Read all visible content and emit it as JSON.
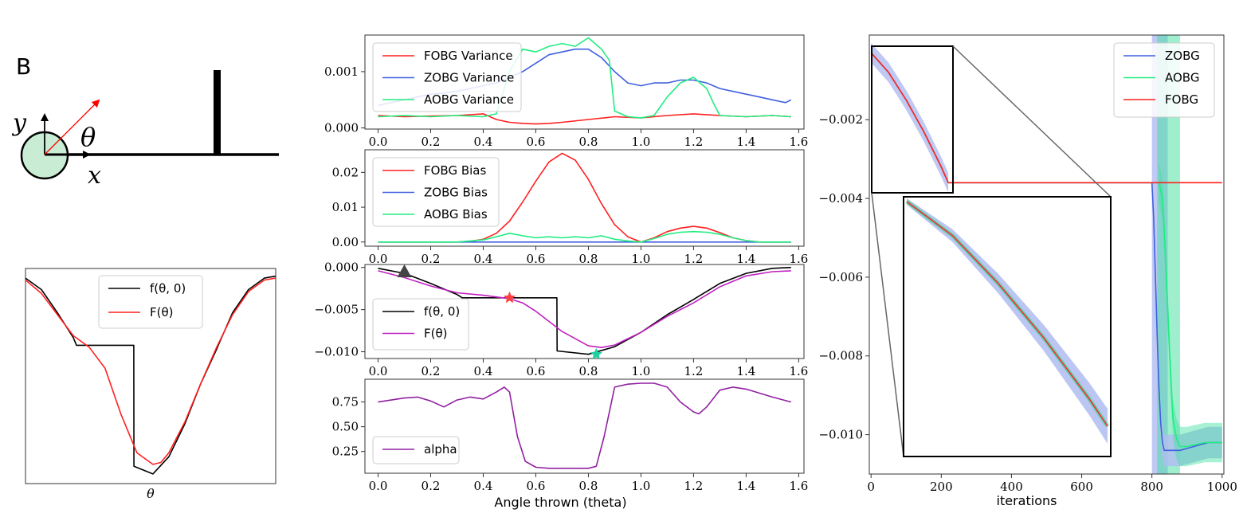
{
  "panel_label": "B",
  "schematic": {
    "axis_labels": {
      "y": "y",
      "x": "x",
      "theta": "θ"
    },
    "colors": {
      "ball_fill": "#c8ecd4",
      "throw_arrow": "#ff0000"
    }
  },
  "colors": {
    "fobg": "#ff2020",
    "zobg": "#4060e0",
    "aobg": "#20ee80",
    "f": "#000000",
    "F": "#c020c0",
    "alpha": "#9020a0",
    "marker_triangle": "#444444",
    "marker_star_red": "#ff4040",
    "marker_star_green": "#20d0a0"
  },
  "chart_data": [
    {
      "id": "landscape",
      "type": "line",
      "title": "",
      "xlabel": "θ",
      "ylabel": "",
      "xlim": [
        0.0,
        1.5708
      ],
      "ylim": [
        -0.0108,
        0.0004
      ],
      "series": [
        {
          "name": "f(θ, 0)",
          "color": "#000000",
          "x": [
            0.0,
            0.1,
            0.2,
            0.3,
            0.32,
            0.68,
            0.681,
            0.8,
            0.9,
            1.0,
            1.1,
            1.2,
            1.21,
            1.3,
            1.4,
            1.5,
            1.5708
          ],
          "y": [
            -0.0001,
            -0.0007,
            -0.0019,
            -0.0032,
            -0.0036,
            -0.0036,
            -0.0099,
            -0.0103,
            -0.0094,
            -0.0077,
            -0.0056,
            -0.0038,
            -0.0036,
            -0.0019,
            -0.0007,
            -0.0001,
            0.0
          ]
        },
        {
          "name": "F(θ)",
          "color": "#ff2020",
          "x": [
            0.0,
            0.1,
            0.2,
            0.3,
            0.4,
            0.5,
            0.6,
            0.7,
            0.8,
            0.85,
            0.9,
            1.0,
            1.1,
            1.2,
            1.3,
            1.4,
            1.5,
            1.5708
          ],
          "y": [
            -0.0002,
            -0.0009,
            -0.002,
            -0.0031,
            -0.0037,
            -0.0048,
            -0.0072,
            -0.0092,
            -0.0098,
            -0.0097,
            -0.0092,
            -0.0076,
            -0.0056,
            -0.0037,
            -0.002,
            -0.0008,
            -0.0002,
            -0.0001
          ]
        }
      ]
    },
    {
      "id": "variance",
      "type": "line",
      "title": "",
      "xlabel": "",
      "ylabel": "",
      "xlim": [
        -0.05,
        1.62
      ],
      "ylim": [
        -2e-05,
        0.00165
      ],
      "yticks": [
        0.0,
        0.001
      ],
      "ytick_labels": [
        "0.000",
        "0.001"
      ],
      "xticks": [
        0.0,
        0.2,
        0.4,
        0.6,
        0.8,
        1.0,
        1.2,
        1.4,
        1.6
      ],
      "xtick_labels": [
        "0.0",
        "0.2",
        "0.4",
        "0.6",
        "0.8",
        "1.0",
        "1.2",
        "1.4",
        "1.6"
      ],
      "legend": "upper-left",
      "series": [
        {
          "name": "FOBG Variance",
          "color": "#ff2020",
          "x": [
            0.0,
            0.1,
            0.2,
            0.3,
            0.4,
            0.45,
            0.5,
            0.55,
            0.6,
            0.65,
            0.7,
            0.8,
            0.9,
            1.0,
            1.1,
            1.2,
            1.3,
            1.4,
            1.5,
            1.5708
          ],
          "y": [
            0.00022,
            0.0002,
            0.00021,
            0.00022,
            0.00025,
            0.00015,
            0.0001,
            8e-05,
            7e-05,
            8e-05,
            0.0001,
            0.00015,
            0.0002,
            0.00018,
            0.00022,
            0.00025,
            0.00022,
            0.0002,
            0.00022,
            0.0002
          ]
        },
        {
          "name": "ZOBG Variance",
          "color": "#4060e0",
          "x": [
            0.0,
            0.05,
            0.1,
            0.15,
            0.2,
            0.25,
            0.3,
            0.35,
            0.4,
            0.45,
            0.5,
            0.55,
            0.6,
            0.65,
            0.7,
            0.75,
            0.8,
            0.85,
            0.9,
            0.95,
            1.0,
            1.05,
            1.1,
            1.15,
            1.2,
            1.25,
            1.3,
            1.35,
            1.4,
            1.45,
            1.5,
            1.55,
            1.5708
          ],
          "y": [
            0.0004,
            0.00045,
            0.0005,
            0.00055,
            0.0006,
            0.00062,
            0.00065,
            0.0007,
            0.00075,
            0.0008,
            0.0009,
            0.001,
            0.00115,
            0.0013,
            0.00135,
            0.0014,
            0.0014,
            0.00125,
            0.001,
            0.0008,
            0.00075,
            0.0008,
            0.0008,
            0.00085,
            0.00085,
            0.0008,
            0.0007,
            0.00065,
            0.0006,
            0.00055,
            0.0005,
            0.00045,
            0.0005
          ]
        },
        {
          "name": "AOBG Variance",
          "color": "#20ee80",
          "x": [
            0.0,
            0.1,
            0.2,
            0.3,
            0.4,
            0.45,
            0.5,
            0.55,
            0.6,
            0.65,
            0.7,
            0.75,
            0.8,
            0.85,
            0.88,
            0.9,
            0.95,
            1.0,
            1.05,
            1.1,
            1.15,
            1.2,
            1.25,
            1.28,
            1.3,
            1.4,
            1.5,
            1.5708
          ],
          "y": [
            0.0002,
            0.00022,
            0.0002,
            0.00022,
            0.0002,
            0.00025,
            0.001,
            0.0014,
            0.00135,
            0.00145,
            0.0015,
            0.00145,
            0.0016,
            0.0014,
            0.0012,
            0.0003,
            0.0002,
            0.00018,
            0.00022,
            0.00055,
            0.0008,
            0.0009,
            0.0007,
            0.0004,
            0.00022,
            0.0002,
            0.00022,
            0.0002
          ]
        }
      ]
    },
    {
      "id": "bias",
      "type": "line",
      "title": "",
      "xlabel": "",
      "ylabel": "",
      "xlim": [
        -0.05,
        1.62
      ],
      "ylim": [
        -0.0012,
        0.0265
      ],
      "yticks": [
        0.0,
        0.01,
        0.02
      ],
      "ytick_labels": [
        "0.00",
        "0.01",
        "0.02"
      ],
      "xticks": [
        0.0,
        0.2,
        0.4,
        0.6,
        0.8,
        1.0,
        1.2,
        1.4,
        1.6
      ],
      "xtick_labels": [
        "0.0",
        "0.2",
        "0.4",
        "0.6",
        "0.8",
        "1.0",
        "1.2",
        "1.4",
        "1.6"
      ],
      "legend": "upper-left",
      "series": [
        {
          "name": "FOBG Bias",
          "color": "#ff2020",
          "x": [
            0.0,
            0.3,
            0.35,
            0.4,
            0.45,
            0.5,
            0.55,
            0.6,
            0.65,
            0.7,
            0.75,
            0.8,
            0.85,
            0.9,
            0.95,
            1.0,
            1.05,
            1.1,
            1.15,
            1.2,
            1.25,
            1.3,
            1.35,
            1.4,
            1.45,
            1.5,
            1.5708
          ],
          "y": [
            0.0,
            0.0,
            0.0002,
            0.0008,
            0.0025,
            0.006,
            0.0115,
            0.0175,
            0.023,
            0.0255,
            0.0235,
            0.018,
            0.011,
            0.005,
            0.0015,
            0.0,
            0.0012,
            0.003,
            0.004,
            0.0045,
            0.004,
            0.0027,
            0.0012,
            0.0004,
            0.0,
            0.0,
            0.0
          ]
        },
        {
          "name": "ZOBG Bias",
          "color": "#4060e0",
          "x": [
            0.0,
            0.4,
            0.8,
            1.2,
            1.5708
          ],
          "y": [
            0.0,
            0.0,
            0.0,
            0.0,
            0.0
          ]
        },
        {
          "name": "AOBG Bias",
          "color": "#20ee80",
          "x": [
            0.0,
            0.3,
            0.4,
            0.45,
            0.5,
            0.55,
            0.6,
            0.65,
            0.7,
            0.75,
            0.8,
            0.85,
            0.9,
            0.95,
            1.0,
            1.05,
            1.1,
            1.15,
            1.2,
            1.25,
            1.3,
            1.35,
            1.4,
            1.45,
            1.5708
          ],
          "y": [
            0.0,
            0.0,
            0.0006,
            0.0015,
            0.0025,
            0.0018,
            0.0012,
            0.0015,
            0.0012,
            0.0015,
            0.0012,
            0.0018,
            0.0008,
            0.0003,
            0.0,
            0.001,
            0.0022,
            0.0028,
            0.003,
            0.0028,
            0.0022,
            0.0012,
            0.0004,
            0.0,
            0.0
          ]
        }
      ]
    },
    {
      "id": "objective",
      "type": "line",
      "title": "",
      "xlabel": "",
      "ylabel": "",
      "xlim": [
        -0.05,
        1.62
      ],
      "ylim": [
        -0.0108,
        0.00035
      ],
      "yticks": [
        0.0,
        -0.005,
        -0.01
      ],
      "ytick_labels": [
        "0.000",
        "−0.005",
        "−0.010"
      ],
      "xticks": [
        0.0,
        0.2,
        0.4,
        0.6,
        0.8,
        1.0,
        1.2,
        1.4,
        1.6
      ],
      "xtick_labels": [
        "0.0",
        "0.2",
        "0.4",
        "0.6",
        "0.8",
        "1.0",
        "1.2",
        "1.4",
        "1.6"
      ],
      "legend": "lower-left",
      "series": [
        {
          "name": "f(θ, 0)",
          "color": "#000000",
          "x": [
            0.0,
            0.1,
            0.2,
            0.3,
            0.32,
            0.68,
            0.681,
            0.8,
            0.9,
            1.0,
            1.1,
            1.2,
            1.21,
            1.3,
            1.4,
            1.5,
            1.5708
          ],
          "y": [
            -0.0001,
            -0.0007,
            -0.0019,
            -0.0032,
            -0.0036,
            -0.0036,
            -0.0099,
            -0.0103,
            -0.0094,
            -0.0077,
            -0.0056,
            -0.0038,
            -0.0036,
            -0.0019,
            -0.0007,
            -0.0001,
            0.0
          ]
        },
        {
          "name": "F(θ)",
          "color": "#c020c0",
          "x": [
            0.0,
            0.1,
            0.2,
            0.3,
            0.4,
            0.5,
            0.55,
            0.6,
            0.7,
            0.8,
            0.85,
            0.9,
            1.0,
            1.1,
            1.2,
            1.3,
            1.4,
            1.5,
            1.5708
          ],
          "y": [
            -0.0004,
            -0.0012,
            -0.0022,
            -0.003,
            -0.0033,
            -0.0037,
            -0.0042,
            -0.0052,
            -0.0076,
            -0.0093,
            -0.0095,
            -0.0092,
            -0.0077,
            -0.0058,
            -0.0042,
            -0.0023,
            -0.001,
            -0.0005,
            -0.0004
          ]
        }
      ],
      "markers": [
        {
          "shape": "triangle",
          "x": 0.1,
          "y": -0.0005,
          "color": "#444444"
        },
        {
          "shape": "star",
          "x": 0.5,
          "y": -0.0036,
          "color": "#ff4040"
        },
        {
          "shape": "star",
          "x": 0.83,
          "y": -0.0103,
          "color": "#20d0a0"
        }
      ]
    },
    {
      "id": "alpha",
      "type": "line",
      "title": "",
      "xlabel": "Angle thrown (theta)",
      "ylabel": "",
      "xlim": [
        -0.05,
        1.62
      ],
      "ylim": [
        0.03,
        0.98
      ],
      "yticks": [
        0.25,
        0.5,
        0.75
      ],
      "ytick_labels": [
        "0.25",
        "0.50",
        "0.75"
      ],
      "xticks": [
        0.0,
        0.2,
        0.4,
        0.6,
        0.8,
        1.0,
        1.2,
        1.4,
        1.6
      ],
      "xtick_labels": [
        "0.0",
        "0.2",
        "0.4",
        "0.6",
        "0.8",
        "1.0",
        "1.2",
        "1.4",
        "1.6"
      ],
      "legend": "lower-left",
      "series": [
        {
          "name": "alpha",
          "color": "#9020a0",
          "x": [
            0.0,
            0.05,
            0.1,
            0.15,
            0.2,
            0.25,
            0.3,
            0.35,
            0.4,
            0.45,
            0.48,
            0.5,
            0.53,
            0.56,
            0.6,
            0.65,
            0.7,
            0.75,
            0.8,
            0.83,
            0.86,
            0.9,
            0.95,
            1.0,
            1.05,
            1.1,
            1.15,
            1.2,
            1.22,
            1.25,
            1.3,
            1.35,
            1.4,
            1.45,
            1.5,
            1.5708
          ],
          "y": [
            0.75,
            0.77,
            0.79,
            0.8,
            0.76,
            0.7,
            0.77,
            0.8,
            0.78,
            0.85,
            0.9,
            0.85,
            0.4,
            0.15,
            0.09,
            0.08,
            0.08,
            0.08,
            0.08,
            0.1,
            0.4,
            0.9,
            0.93,
            0.94,
            0.94,
            0.9,
            0.75,
            0.65,
            0.63,
            0.7,
            0.87,
            0.9,
            0.88,
            0.84,
            0.8,
            0.75
          ]
        }
      ]
    },
    {
      "id": "iterations",
      "type": "line",
      "title": "",
      "xlabel": "iterations",
      "ylabel": "",
      "xlim": [
        -5,
        1005
      ],
      "ylim": [
        -0.011,
        0.00015
      ],
      "yticks": [
        -0.002,
        -0.004,
        -0.006,
        -0.008,
        -0.01
      ],
      "ytick_labels": [
        "−0.002",
        "−0.004",
        "−0.006",
        "−0.008",
        "−0.010"
      ],
      "xticks": [
        0,
        200,
        400,
        600,
        800,
        1000
      ],
      "xtick_labels": [
        "0",
        "200",
        "400",
        "600",
        "800",
        "1000"
      ],
      "legend": "upper-right",
      "series": [
        {
          "name": "ZOBG",
          "color": "#4060e0",
          "x": [
            0,
            50,
            100,
            150,
            200,
            220,
            400,
            600,
            800,
            805,
            810,
            815,
            820,
            825,
            830,
            835,
            840,
            850,
            880,
            920,
            960,
            1000
          ],
          "y": [
            -0.0003,
            -0.0008,
            -0.0015,
            -0.0023,
            -0.0032,
            -0.0036,
            -0.0036,
            -0.0036,
            -0.0036,
            -0.0045,
            -0.006,
            -0.0075,
            -0.0088,
            -0.0097,
            -0.0102,
            -0.0104,
            -0.0104,
            -0.0104,
            -0.0104,
            -0.0103,
            -0.0102,
            -0.0102
          ]
        },
        {
          "name": "AOBG",
          "color": "#20ee80",
          "x": [
            0,
            50,
            100,
            150,
            200,
            220,
            400,
            600,
            800,
            820,
            830,
            835,
            840,
            845,
            850,
            855,
            860,
            870,
            880,
            900,
            950,
            1000
          ],
          "y": [
            -0.0003,
            -0.0008,
            -0.0015,
            -0.0023,
            -0.0032,
            -0.0036,
            -0.0036,
            -0.0036,
            -0.0036,
            -0.0036,
            -0.004,
            -0.0048,
            -0.0058,
            -0.0068,
            -0.0078,
            -0.0088,
            -0.0096,
            -0.0101,
            -0.0103,
            -0.0103,
            -0.0102,
            -0.0102
          ]
        },
        {
          "name": "FOBG",
          "color": "#ff2020",
          "x": [
            0,
            50,
            100,
            150,
            200,
            220,
            400,
            600,
            800,
            1000
          ],
          "y": [
            -0.0003,
            -0.0008,
            -0.0015,
            -0.0023,
            -0.0032,
            -0.0036,
            -0.0036,
            -0.0036,
            -0.0036,
            -0.0036
          ]
        }
      ]
    }
  ]
}
